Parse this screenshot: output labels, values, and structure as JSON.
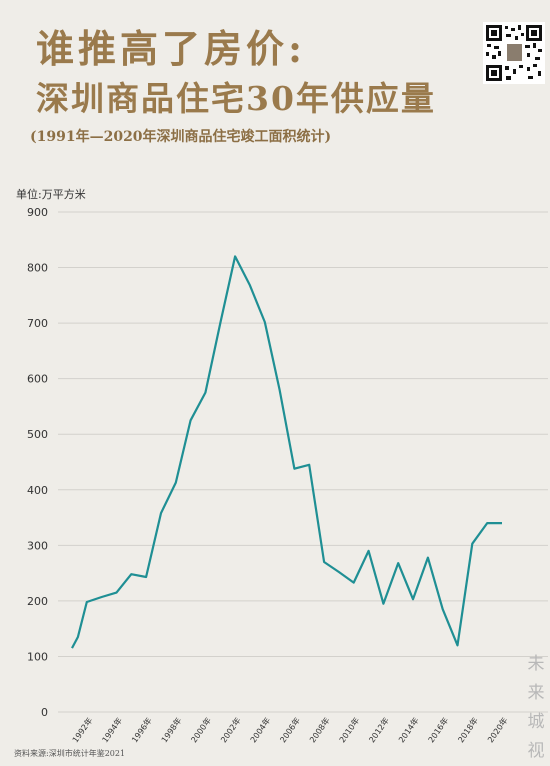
{
  "header": {
    "title_line1": "谁推高了房价:",
    "title_line2": "深圳商品住宅30年供应量",
    "subtitle": "(1991年—2020年深圳商品住宅竣工面积统计)"
  },
  "footer": {
    "source": "资料来源:深圳市统计年鉴2021",
    "brand": "未来城视"
  },
  "colors": {
    "title": "#9a7a4c",
    "line": "#1f8f94",
    "grid": "#d3d1cc",
    "background": "#efede8"
  },
  "chart_data": {
    "type": "line",
    "title": "深圳商品住宅30年供应量",
    "ylabel": "单位:万平方米",
    "ylim": [
      0,
      900
    ],
    "yticks": [
      0,
      100,
      200,
      300,
      400,
      500,
      600,
      700,
      800,
      900
    ],
    "xlim": [
      1991,
      2020
    ],
    "xticks": [
      1992,
      1994,
      1996,
      1998,
      2000,
      2002,
      2004,
      2006,
      2008,
      2010,
      2012,
      2014,
      2016,
      2018,
      2020
    ],
    "xtick_suffix": "年",
    "grid": true,
    "series": [
      {
        "x": [
          1991,
          1991.4,
          1992,
          1993,
          1994,
          1995,
          1996,
          1997,
          1998,
          1999,
          2000,
          2001,
          2002,
          2003,
          2004,
          2005,
          2006,
          2007,
          2008,
          2009,
          2010,
          2011,
          2012,
          2013,
          2014,
          2015,
          2016,
          2017,
          2018,
          2019,
          2020
        ],
        "y": [
          115,
          135,
          198,
          207,
          215,
          248,
          243,
          358,
          413,
          525,
          575,
          700,
          820,
          768,
          702,
          580,
          438,
          445,
          270,
          252,
          233,
          290,
          195,
          268,
          203,
          278,
          185,
          120,
          303,
          340,
          340
        ]
      }
    ]
  }
}
